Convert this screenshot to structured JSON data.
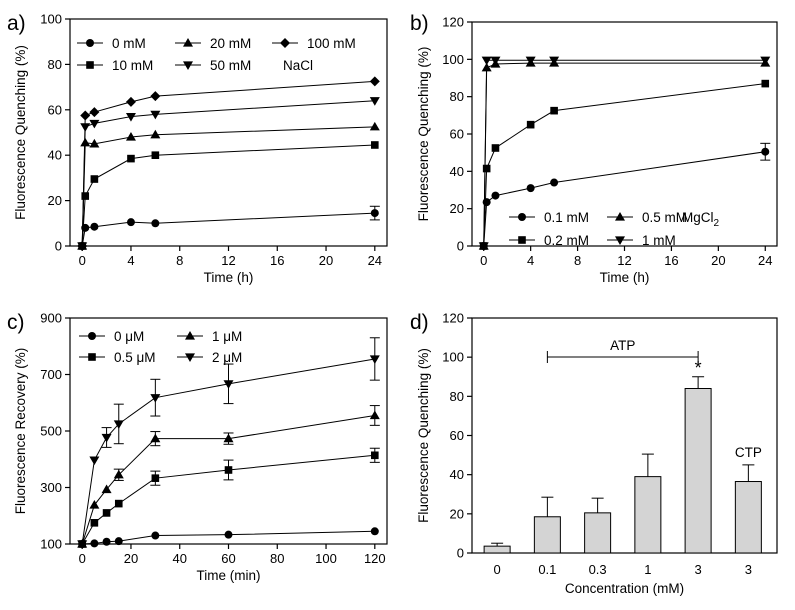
{
  "chart_data": [
    {
      "type": "line",
      "panel_label": "a)",
      "xlabel": "Time (h)",
      "ylabel": "Fluorescence Quenching (%)",
      "xlim": [
        -1,
        25
      ],
      "ylim": [
        0,
        100
      ],
      "xticks": [
        0,
        4,
        8,
        12,
        16,
        20,
        24
      ],
      "yticks": [
        0,
        20,
        40,
        60,
        80,
        100
      ],
      "legend_note": "NaCl",
      "legend_note_sub": "",
      "legend_placement": "top-right",
      "series": [
        {
          "name": "0 mM",
          "marker": "circle",
          "x": [
            0,
            0.25,
            1,
            4,
            6,
            24
          ],
          "y": [
            0,
            8,
            8.5,
            10.5,
            10,
            14.5
          ],
          "err": [
            0,
            0,
            0,
            0,
            0,
            3
          ]
        },
        {
          "name": "20 mM",
          "marker": "triangle-up",
          "x": [
            0,
            0.25,
            1,
            4,
            6,
            24
          ],
          "y": [
            0,
            45.5,
            45,
            48,
            49,
            52.5
          ],
          "err": [
            0,
            0,
            0,
            0,
            0,
            0
          ]
        },
        {
          "name": "100 mM",
          "marker": "diamond",
          "x": [
            0,
            0.25,
            1,
            4,
            6,
            24
          ],
          "y": [
            0,
            57.5,
            59,
            63.5,
            66,
            72.5
          ],
          "err": [
            0,
            0,
            0,
            0,
            0,
            0
          ]
        },
        {
          "name": "10 mM",
          "marker": "square",
          "x": [
            0,
            0.25,
            1,
            4,
            6,
            24
          ],
          "y": [
            0,
            22,
            29.5,
            38.5,
            40,
            44.5
          ],
          "err": [
            0,
            0,
            0,
            0,
            0,
            0
          ]
        },
        {
          "name": "50 mM",
          "marker": "triangle-down",
          "x": [
            0,
            0.25,
            1,
            4,
            6,
            24
          ],
          "y": [
            0,
            52.5,
            54,
            57,
            58,
            64
          ],
          "err": [
            0,
            0,
            0,
            0,
            0,
            0
          ]
        }
      ]
    },
    {
      "type": "line",
      "panel_label": "b)",
      "xlabel": "Time (h)",
      "ylabel": "Fluorescence Quenching (%)",
      "xlim": [
        -1,
        25
      ],
      "ylim": [
        0,
        120
      ],
      "xticks": [
        0,
        4,
        8,
        12,
        16,
        20,
        24
      ],
      "yticks": [
        0,
        20,
        40,
        60,
        80,
        100,
        120
      ],
      "legend_note": "MgCl",
      "legend_note_sub": "2",
      "legend_placement": "bottom-right",
      "series": [
        {
          "name": "0.1 mM",
          "marker": "circle",
          "x": [
            0,
            0.25,
            1,
            4,
            6,
            24
          ],
          "y": [
            0,
            23.5,
            27,
            31,
            34,
            50.5
          ],
          "err": [
            0,
            0,
            0,
            0,
            0,
            4.5
          ]
        },
        {
          "name": "0.5 mM",
          "marker": "triangle-up",
          "x": [
            0,
            0.25,
            1,
            4,
            6,
            24
          ],
          "y": [
            0,
            95.5,
            97.5,
            98,
            98,
            98
          ],
          "err": [
            0,
            0,
            0,
            0,
            0,
            0
          ]
        },
        {
          "name": "0.2 mM",
          "marker": "square",
          "x": [
            0,
            0.25,
            1,
            4,
            6,
            24
          ],
          "y": [
            0,
            41.5,
            52.5,
            65,
            72.5,
            87
          ],
          "err": [
            0,
            0,
            0,
            0,
            0,
            0
          ]
        },
        {
          "name": "1 mM",
          "marker": "triangle-down",
          "x": [
            0,
            0.25,
            1,
            4,
            6,
            24
          ],
          "y": [
            0,
            99.5,
            99.5,
            99.5,
            99.5,
            99.5
          ],
          "err": [
            0,
            0,
            0,
            0,
            0,
            0
          ]
        }
      ]
    },
    {
      "type": "line",
      "panel_label": "c)",
      "xlabel": "Time (min)",
      "ylabel": "Fluorescence Recovery (%)",
      "xlim": [
        -5,
        125
      ],
      "ylim": [
        100,
        900
      ],
      "xticks": [
        0,
        20,
        40,
        60,
        80,
        100,
        120
      ],
      "yticks": [
        100,
        300,
        500,
        700,
        900
      ],
      "legend_note": "",
      "legend_note_sub": "",
      "legend_placement": "top-left",
      "series": [
        {
          "name": "0 μM",
          "marker": "circle",
          "x": [
            0,
            5,
            10,
            15,
            30,
            60,
            120
          ],
          "y": [
            100,
            102,
            108,
            110,
            130,
            133,
            145
          ],
          "err": [
            0,
            0,
            0,
            0,
            0,
            0,
            0
          ]
        },
        {
          "name": "1 μM",
          "marker": "triangle-up",
          "x": [
            0,
            5,
            10,
            15,
            30,
            60,
            120
          ],
          "y": [
            100,
            238,
            293,
            345,
            473,
            473,
            555
          ],
          "err": [
            0,
            0,
            0,
            20,
            25,
            20,
            35
          ]
        },
        {
          "name": "0.5 μM",
          "marker": "square",
          "x": [
            0,
            5,
            10,
            15,
            30,
            60,
            120
          ],
          "y": [
            100,
            175,
            210,
            243,
            333,
            362,
            414
          ],
          "err": [
            0,
            0,
            0,
            0,
            25,
            35,
            25
          ]
        },
        {
          "name": "2 μM",
          "marker": "triangle-down",
          "x": [
            0,
            5,
            10,
            15,
            30,
            60,
            120
          ],
          "y": [
            100,
            397,
            477,
            525,
            618,
            667,
            755
          ],
          "err": [
            0,
            0,
            35,
            70,
            65,
            70,
            75
          ]
        }
      ]
    },
    {
      "type": "bar",
      "panel_label": "d)",
      "xlabel": "Concentration (mM)",
      "ylabel": "Fluorescence Quenching (%)",
      "ylim": [
        0,
        120
      ],
      "yticks": [
        0,
        20,
        40,
        60,
        80,
        100,
        120
      ],
      "categories": [
        "0",
        "0.1",
        "0.3",
        "1",
        "3",
        "3"
      ],
      "values": [
        3.5,
        18.5,
        20.5,
        39,
        84,
        36.5
      ],
      "errors": [
        1.5,
        10,
        7.5,
        11.5,
        6,
        8.5
      ],
      "bracket_label": "ATP",
      "bracket_from": 1,
      "bracket_to": 4,
      "significance_label": "*",
      "significance_index": 4,
      "bar_label": "CTP",
      "bar_label_index": 5
    }
  ]
}
